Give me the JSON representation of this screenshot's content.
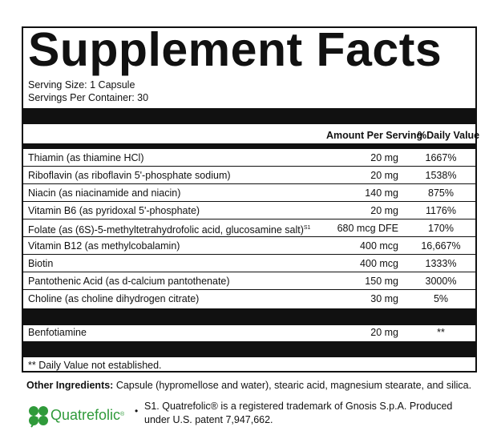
{
  "title": "Supplement Facts",
  "serving_size": "Serving Size: 1 Capsule",
  "servings_per_container": "Servings Per Container: 30",
  "header": {
    "amount": "Amount Per Serving",
    "dv": "%Daily Value"
  },
  "rows": [
    {
      "name": "Thiamin (as thiamine HCl)",
      "sup": "",
      "amount": "20 mg",
      "dv": "1667%"
    },
    {
      "name": "Riboflavin (as riboflavin 5'-phosphate sodium)",
      "sup": "",
      "amount": "20 mg",
      "dv": "1538%"
    },
    {
      "name": "Niacin (as niacinamide and niacin)",
      "sup": "",
      "amount": "140 mg",
      "dv": "875%"
    },
    {
      "name": "Vitamin B6 (as pyridoxal 5'-phosphate)",
      "sup": "",
      "amount": "20 mg",
      "dv": "1176%"
    },
    {
      "name": "Folate (as (6S)-5-methyltetrahydrofolic acid, glucosamine salt)",
      "sup": "S1",
      "amount": "680 mcg DFE",
      "dv": "170%"
    },
    {
      "name": "Vitamin B12 (as methylcobalamin)",
      "sup": "",
      "amount": "400 mcg",
      "dv": "16,667%"
    },
    {
      "name": "Biotin",
      "sup": "",
      "amount": "400 mcg",
      "dv": "1333%"
    },
    {
      "name": "Pantothenic Acid (as d-calcium pantothenate)",
      "sup": "",
      "amount": "150 mg",
      "dv": "3000%"
    },
    {
      "name": "Choline (as choline dihydrogen citrate)",
      "sup": "",
      "amount": "30 mg",
      "dv": "5%"
    }
  ],
  "benfotiamine": {
    "name": "Benfotiamine",
    "amount": "20 mg",
    "dv": "**"
  },
  "footnote": "** Daily Value not established.",
  "other_ingredients": {
    "label": "Other Ingredients:",
    "text": " Capsule (hypromellose and water), stearic acid, magnesium stearate, and silica."
  },
  "brand": {
    "logo_text": "Quatrefolic",
    "logo_mark": "®",
    "color": "#2f9a3a"
  },
  "s1_note": {
    "bullet": "•",
    "line1": "S1. Quatrefolic® is a registered trademark of Gnosis S.p.A. Produced",
    "line2": "under U.S. patent 7,947,662."
  }
}
